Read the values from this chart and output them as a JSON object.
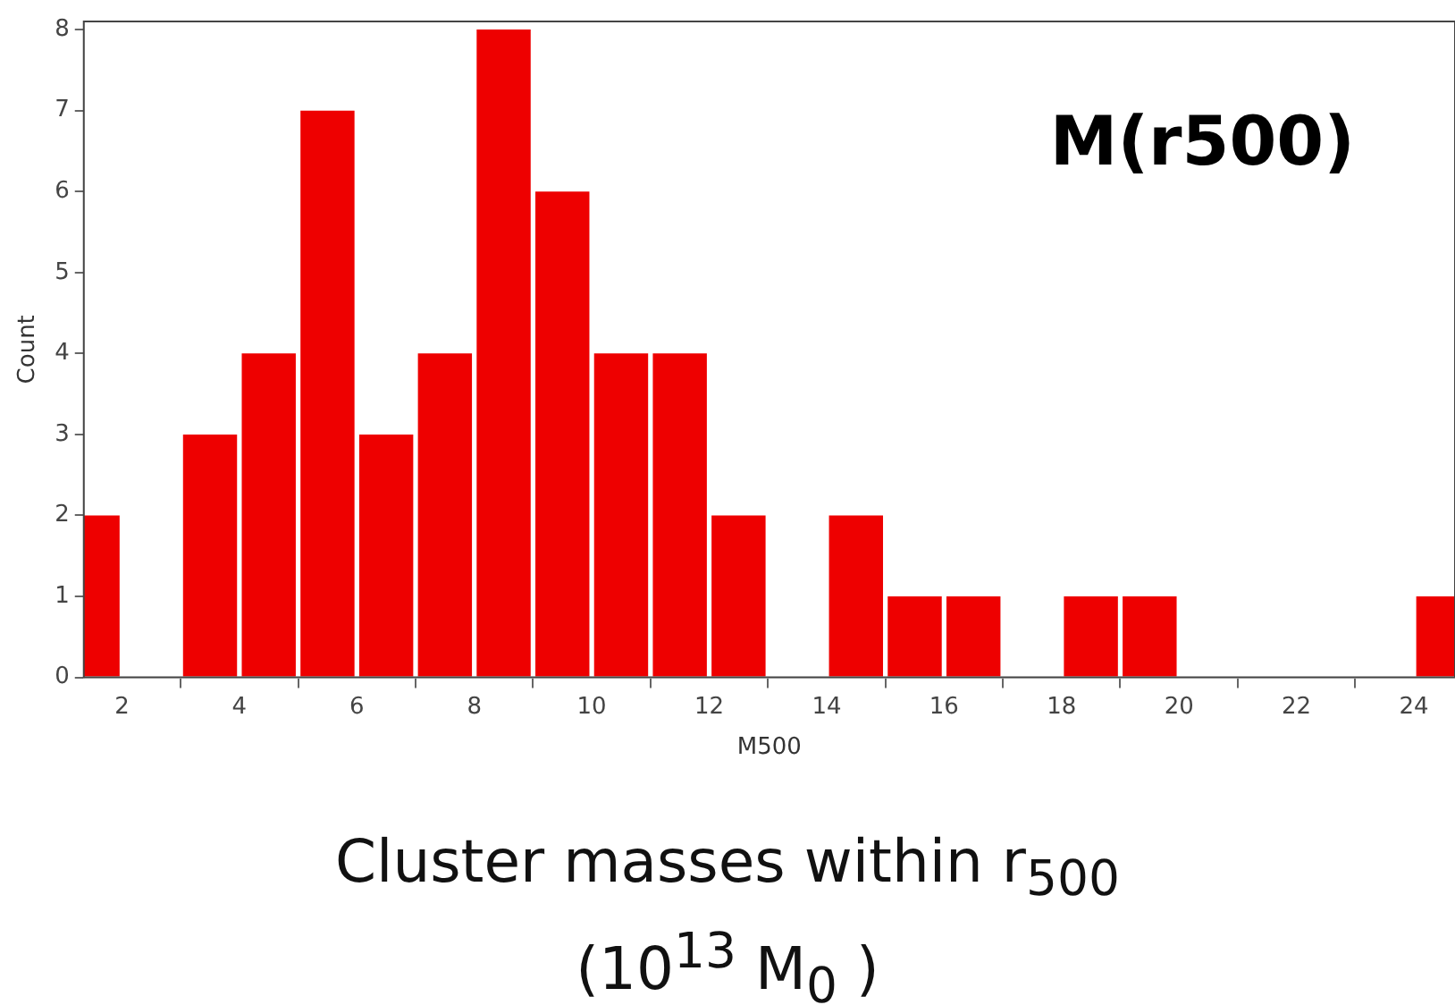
{
  "chart_data": {
    "type": "histogram",
    "xlabel": "M500",
    "ylabel": "Count",
    "annotations": [
      "M(r500)",
      "Cluster masses within r$_{500}$",
      "(10$^{13}$ M$_{0}$ )"
    ],
    "bins": [
      1,
      2,
      3,
      4,
      5,
      6,
      7,
      8,
      9,
      10,
      11,
      12,
      13,
      14,
      15,
      16,
      17,
      18,
      19,
      20,
      21,
      22,
      23,
      24,
      25
    ],
    "values": [
      2,
      0,
      3,
      4,
      7,
      3,
      4,
      8,
      6,
      4,
      4,
      2,
      0,
      2,
      1,
      1,
      0,
      1,
      1,
      0,
      0,
      0,
      0,
      1
    ],
    "color": "#ee0000",
    "xlim": [
      1.35,
      24.7
    ],
    "xticks": [
      2,
      4,
      6,
      8,
      10,
      12,
      14,
      16,
      18,
      20,
      22,
      24
    ],
    "ylim": [
      0,
      8.1
    ],
    "yticks": [
      0,
      1,
      2,
      3,
      4,
      5,
      6,
      7,
      8
    ],
    "grid": false,
    "legend": false
  }
}
